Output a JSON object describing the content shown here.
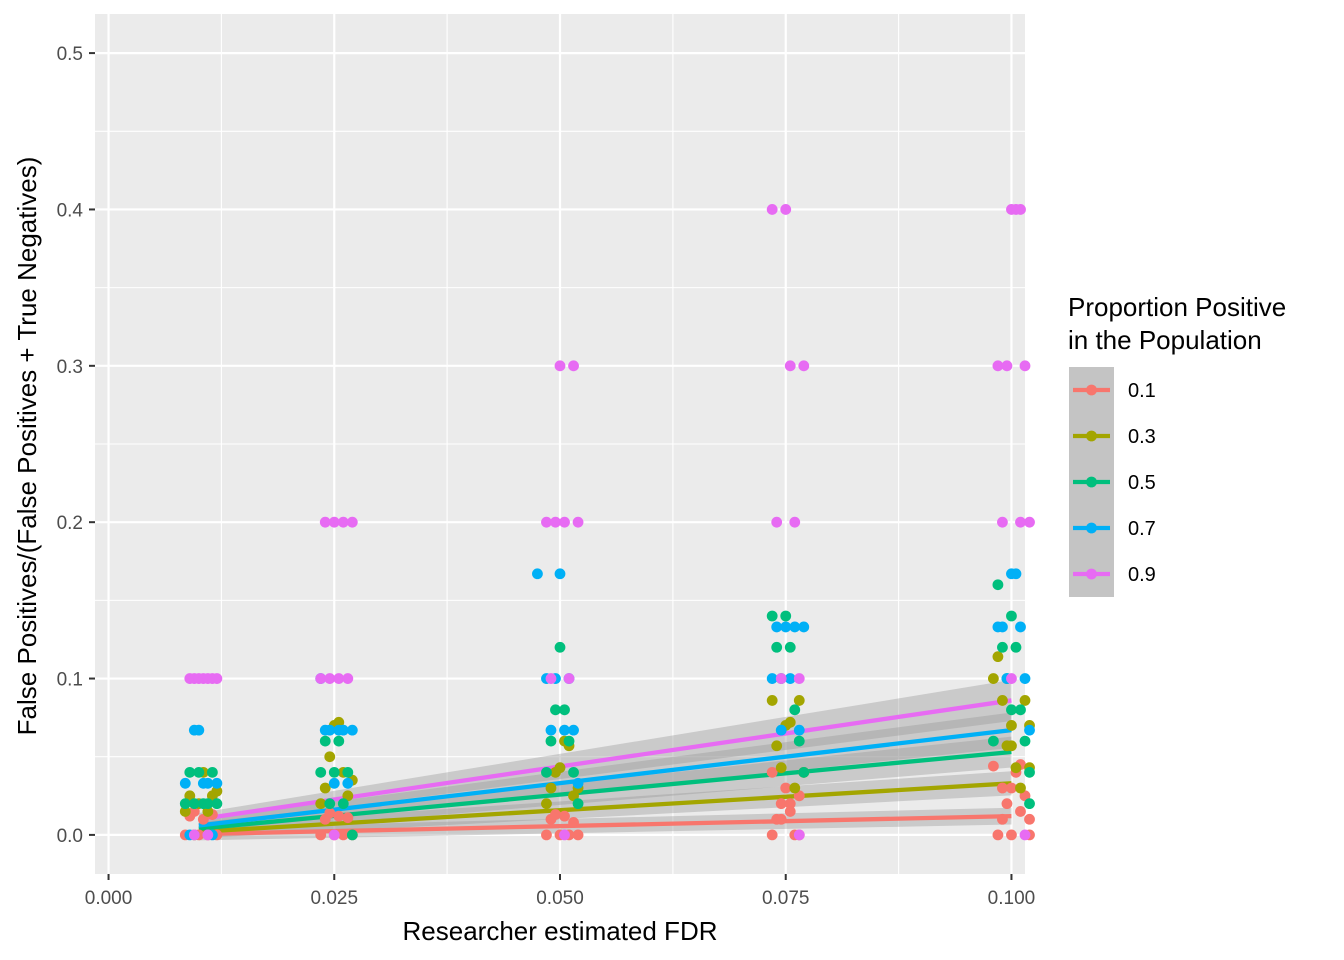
{
  "chart_data": {
    "type": "scatter",
    "xlabel": "Researcher estimated FDR",
    "ylabel": "False Positives/(False Positives + True Negatives)",
    "xlim": [
      -0.0015,
      0.1015
    ],
    "ylim": [
      -0.025,
      0.525
    ],
    "x_ticks": [
      0.0,
      0.025,
      0.05,
      0.075,
      0.1
    ],
    "x_tick_labels": [
      "0.000",
      "0.025",
      "0.050",
      "0.075",
      "0.100"
    ],
    "y_ticks": [
      0.0,
      0.1,
      0.2,
      0.3,
      0.4,
      0.5
    ],
    "y_tick_labels": [
      "0.0",
      "0.1",
      "0.2",
      "0.3",
      "0.4",
      "0.5"
    ],
    "grid": true,
    "legend": {
      "title_lines": [
        "Proportion Positive",
        "in the Population"
      ],
      "placement": "right"
    },
    "series": [
      {
        "name": "0.1",
        "color": "#f8766d",
        "trend": {
          "x": [
            0.01,
            0.1
          ],
          "y": [
            0.0005,
            0.012
          ]
        },
        "points": [
          [
            0.0085,
            0
          ],
          [
            0.009,
            0.012
          ],
          [
            0.0095,
            0.015
          ],
          [
            0.01,
            0
          ],
          [
            0.0105,
            0.01
          ],
          [
            0.011,
            0
          ],
          [
            0.0115,
            0.013
          ],
          [
            0.012,
            0
          ],
          [
            0.0235,
            0
          ],
          [
            0.024,
            0.01
          ],
          [
            0.0245,
            0.014
          ],
          [
            0.025,
            0
          ],
          [
            0.0255,
            0.012
          ],
          [
            0.026,
            0
          ],
          [
            0.0265,
            0.011
          ],
          [
            0.027,
            0
          ],
          [
            0.0485,
            0
          ],
          [
            0.049,
            0.01
          ],
          [
            0.0495,
            0.013
          ],
          [
            0.05,
            0
          ],
          [
            0.0505,
            0.012
          ],
          [
            0.051,
            0
          ],
          [
            0.0515,
            0.008
          ],
          [
            0.052,
            0
          ],
          [
            0.0735,
            0
          ],
          [
            0.074,
            0.01
          ],
          [
            0.0745,
            0.02
          ],
          [
            0.075,
            0.03
          ],
          [
            0.0755,
            0.015
          ],
          [
            0.076,
            0
          ],
          [
            0.0765,
            0.025
          ],
          [
            0.077,
            0.04
          ],
          [
            0.0735,
            0.04
          ],
          [
            0.0745,
            0.01
          ],
          [
            0.0755,
            0.02
          ],
          [
            0.0765,
            0
          ],
          [
            0.0985,
            0
          ],
          [
            0.099,
            0.01
          ],
          [
            0.0995,
            0.02
          ],
          [
            0.1,
            0.03
          ],
          [
            0.1005,
            0.04
          ],
          [
            0.101,
            0.015
          ],
          [
            0.1015,
            0.025
          ],
          [
            0.102,
            0
          ],
          [
            0.098,
            0.044
          ],
          [
            0.099,
            0.03
          ],
          [
            0.1,
            0
          ],
          [
            0.101,
            0.045
          ],
          [
            0.102,
            0.01
          ]
        ]
      },
      {
        "name": "0.3",
        "color": "#a3a500",
        "trend": {
          "x": [
            0.01,
            0.1
          ],
          "y": [
            0.002,
            0.033
          ]
        },
        "points": [
          [
            0.0085,
            0.015
          ],
          [
            0.009,
            0.025
          ],
          [
            0.0095,
            0
          ],
          [
            0.01,
            0.02
          ],
          [
            0.0105,
            0.04
          ],
          [
            0.011,
            0.015
          ],
          [
            0.0115,
            0.025
          ],
          [
            0.012,
            0.028
          ],
          [
            0.0235,
            0.02
          ],
          [
            0.024,
            0.03
          ],
          [
            0.0245,
            0.05
          ],
          [
            0.025,
            0.07
          ],
          [
            0.0255,
            0.072
          ],
          [
            0.026,
            0.04
          ],
          [
            0.0265,
            0.025
          ],
          [
            0.027,
            0.035
          ],
          [
            0.0485,
            0.02
          ],
          [
            0.049,
            0.03
          ],
          [
            0.0495,
            0.04
          ],
          [
            0.05,
            0.043
          ],
          [
            0.0505,
            0.06
          ],
          [
            0.051,
            0.057
          ],
          [
            0.0515,
            0.025
          ],
          [
            0.052,
            0.03
          ],
          [
            0.0735,
            0.086
          ],
          [
            0.074,
            0.057
          ],
          [
            0.0745,
            0.043
          ],
          [
            0.075,
            0.07
          ],
          [
            0.0755,
            0.072
          ],
          [
            0.076,
            0.03
          ],
          [
            0.0765,
            0.086
          ],
          [
            0.077,
            0.04
          ],
          [
            0.0985,
            0.114
          ],
          [
            0.099,
            0.086
          ],
          [
            0.0995,
            0.057
          ],
          [
            0.1,
            0.07
          ],
          [
            0.1005,
            0.043
          ],
          [
            0.101,
            0.03
          ],
          [
            0.1015,
            0.086
          ],
          [
            0.102,
            0.043
          ],
          [
            0.098,
            0.1
          ],
          [
            0.1,
            0.057
          ],
          [
            0.102,
            0.07
          ]
        ]
      },
      {
        "name": "0.5",
        "color": "#00bf7d",
        "trend": {
          "x": [
            0.01,
            0.1
          ],
          "y": [
            0.004,
            0.053
          ]
        },
        "points": [
          [
            0.0085,
            0.02
          ],
          [
            0.009,
            0.04
          ],
          [
            0.0095,
            0.02
          ],
          [
            0.01,
            0.04
          ],
          [
            0.0105,
            0.02
          ],
          [
            0.011,
            0.02
          ],
          [
            0.0115,
            0.04
          ],
          [
            0.012,
            0.02
          ],
          [
            0.0235,
            0.04
          ],
          [
            0.024,
            0.06
          ],
          [
            0.0245,
            0.02
          ],
          [
            0.025,
            0.04
          ],
          [
            0.0255,
            0.06
          ],
          [
            0.026,
            0.02
          ],
          [
            0.0265,
            0.04
          ],
          [
            0.027,
            0
          ],
          [
            0.0485,
            0.04
          ],
          [
            0.049,
            0.06
          ],
          [
            0.0495,
            0.08
          ],
          [
            0.05,
            0.12
          ],
          [
            0.0505,
            0.08
          ],
          [
            0.051,
            0.06
          ],
          [
            0.0515,
            0.04
          ],
          [
            0.052,
            0.02
          ],
          [
            0.0735,
            0.14
          ],
          [
            0.074,
            0.12
          ],
          [
            0.0745,
            0.1
          ],
          [
            0.075,
            0.14
          ],
          [
            0.0755,
            0.12
          ],
          [
            0.076,
            0.08
          ],
          [
            0.0765,
            0.06
          ],
          [
            0.077,
            0.04
          ],
          [
            0.0985,
            0.16
          ],
          [
            0.099,
            0.12
          ],
          [
            0.0995,
            0.1
          ],
          [
            0.1,
            0.14
          ],
          [
            0.1005,
            0.12
          ],
          [
            0.101,
            0.08
          ],
          [
            0.1015,
            0.06
          ],
          [
            0.102,
            0.04
          ],
          [
            0.098,
            0.06
          ],
          [
            0.1,
            0.08
          ],
          [
            0.102,
            0.02
          ]
        ]
      },
      {
        "name": "0.7",
        "color": "#00b0f6",
        "trend": {
          "x": [
            0.01,
            0.1
          ],
          "y": [
            0.006,
            0.067
          ]
        },
        "points": [
          [
            0.0085,
            0.033
          ],
          [
            0.009,
            0
          ],
          [
            0.0095,
            0.067
          ],
          [
            0.01,
            0.067
          ],
          [
            0.0105,
            0.033
          ],
          [
            0.011,
            0.033
          ],
          [
            0.0115,
            0
          ],
          [
            0.012,
            0.033
          ],
          [
            0.0235,
            0.1
          ],
          [
            0.024,
            0.067
          ],
          [
            0.0245,
            0.067
          ],
          [
            0.025,
            0.033
          ],
          [
            0.0255,
            0.067
          ],
          [
            0.026,
            0.067
          ],
          [
            0.0265,
            0.033
          ],
          [
            0.027,
            0.067
          ],
          [
            0.0475,
            0.167
          ],
          [
            0.0485,
            0.1
          ],
          [
            0.049,
            0.067
          ],
          [
            0.0495,
            0.1
          ],
          [
            0.05,
            0.167
          ],
          [
            0.0505,
            0.067
          ],
          [
            0.051,
            0.1
          ],
          [
            0.0515,
            0.067
          ],
          [
            0.052,
            0.033
          ],
          [
            0.0735,
            0.1
          ],
          [
            0.074,
            0.133
          ],
          [
            0.0745,
            0.067
          ],
          [
            0.075,
            0.133
          ],
          [
            0.0755,
            0.1
          ],
          [
            0.076,
            0.133
          ],
          [
            0.0765,
            0.067
          ],
          [
            0.077,
            0.133
          ],
          [
            0.0985,
            0.133
          ],
          [
            0.099,
            0.133
          ],
          [
            0.0995,
            0.1
          ],
          [
            0.1,
            0.167
          ],
          [
            0.1005,
            0.167
          ],
          [
            0.101,
            0.133
          ],
          [
            0.1015,
            0.1
          ],
          [
            0.102,
            0.067
          ]
        ]
      },
      {
        "name": "0.9",
        "color": "#e76bf3",
        "trend": {
          "x": [
            0.01,
            0.1
          ],
          "y": [
            0.01,
            0.086
          ]
        },
        "points": [
          [
            0.009,
            0.1
          ],
          [
            0.0095,
            0.1
          ],
          [
            0.01,
            0.1
          ],
          [
            0.0105,
            0.1
          ],
          [
            0.011,
            0.1
          ],
          [
            0.0115,
            0.1
          ],
          [
            0.012,
            0.1
          ],
          [
            0.0095,
            0
          ],
          [
            0.011,
            0
          ],
          [
            0.0235,
            0.1
          ],
          [
            0.024,
            0.2
          ],
          [
            0.0245,
            0.1
          ],
          [
            0.025,
            0.2
          ],
          [
            0.0255,
            0.1
          ],
          [
            0.026,
            0.2
          ],
          [
            0.0265,
            0.1
          ],
          [
            0.027,
            0.2
          ],
          [
            0.025,
            0
          ],
          [
            0.0485,
            0.2
          ],
          [
            0.049,
            0.1
          ],
          [
            0.0495,
            0.2
          ],
          [
            0.05,
            0.3
          ],
          [
            0.0505,
            0.2
          ],
          [
            0.051,
            0.1
          ],
          [
            0.0515,
            0.3
          ],
          [
            0.052,
            0.2
          ],
          [
            0.0505,
            0
          ],
          [
            0.0735,
            0.4
          ],
          [
            0.074,
            0.2
          ],
          [
            0.0745,
            0.1
          ],
          [
            0.075,
            0.4
          ],
          [
            0.0755,
            0.3
          ],
          [
            0.076,
            0.2
          ],
          [
            0.0765,
            0.1
          ],
          [
            0.077,
            0.3
          ],
          [
            0.0765,
            0
          ],
          [
            0.0985,
            0.3
          ],
          [
            0.099,
            0.2
          ],
          [
            0.0995,
            0.3
          ],
          [
            0.1,
            0.4
          ],
          [
            0.1005,
            0.4
          ],
          [
            0.101,
            0.2
          ],
          [
            0.1015,
            0.3
          ],
          [
            0.102,
            0.2
          ],
          [
            0.101,
            0.4
          ],
          [
            0.1,
            0.1
          ],
          [
            0.1015,
            0
          ]
        ]
      }
    ]
  }
}
